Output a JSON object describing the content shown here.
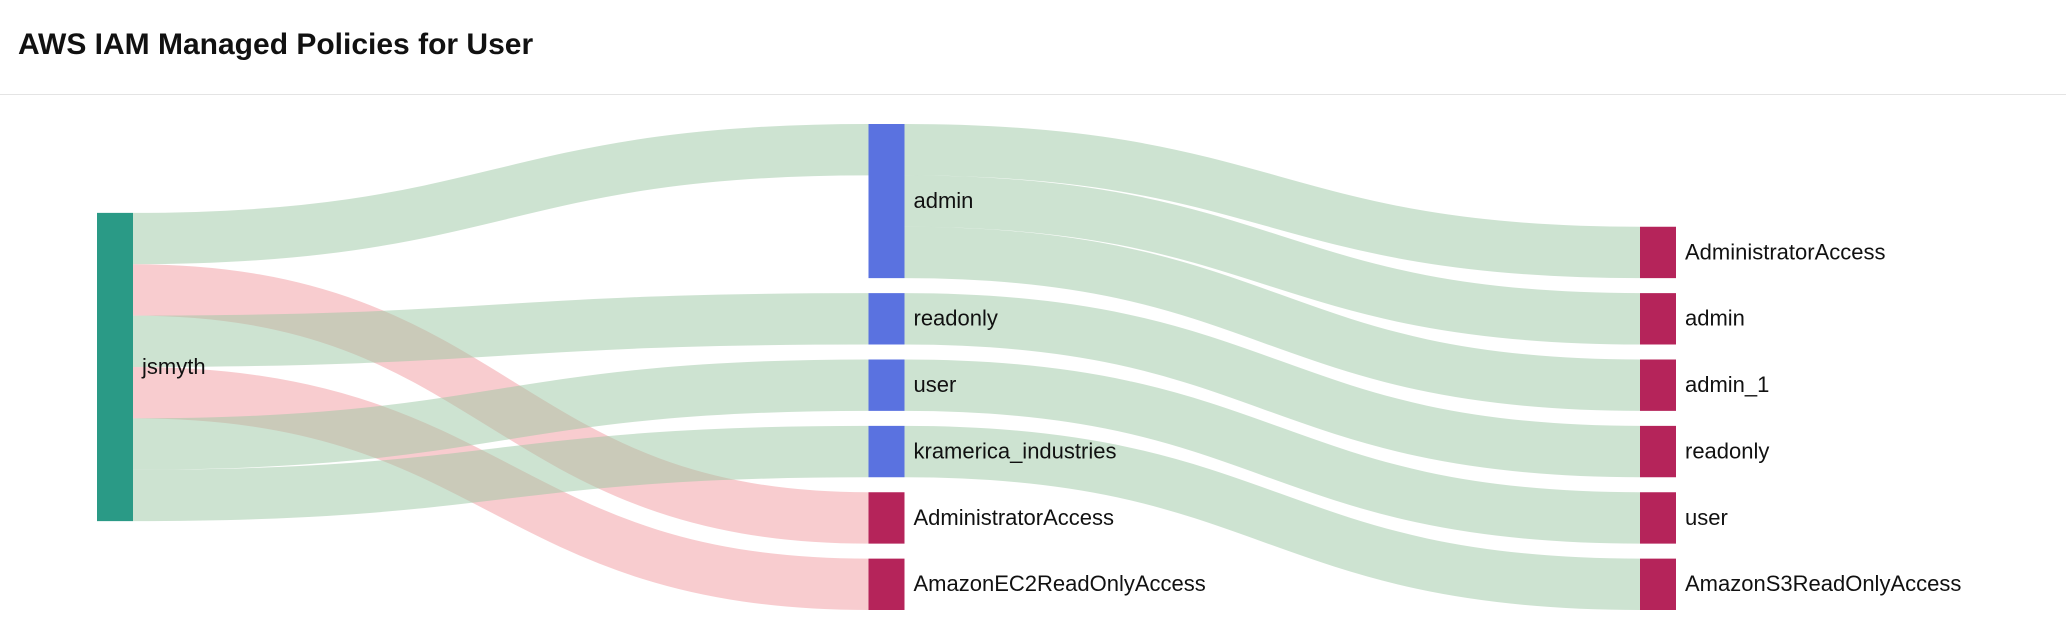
{
  "header": {
    "title": "AWS IAM Managed Policies for User"
  },
  "chart_data": {
    "type": "sankey",
    "nodes": [
      {
        "label": "jsmyth",
        "color": "#2a9a86"
      },
      {
        "label": "admin",
        "color": "#5a72e0"
      },
      {
        "label": "readonly",
        "color": "#5a72e0"
      },
      {
        "label": "user",
        "color": "#5a72e0"
      },
      {
        "label": "kramerica_industries",
        "color": "#5a72e0"
      },
      {
        "label": "AdministratorAccess",
        "color": "#b5245a"
      },
      {
        "label": "admin",
        "color": "#b5245a"
      },
      {
        "label": "admin_1",
        "color": "#b5245a"
      },
      {
        "label": "readonly",
        "color": "#b5245a"
      },
      {
        "label": "user",
        "color": "#b5245a"
      },
      {
        "label": "AdministratorAccess",
        "color": "#b5245a"
      },
      {
        "label": "AmazonEC2ReadOnlyAccess",
        "color": "#b5245a"
      },
      {
        "label": "AmazonS3ReadOnlyAccess",
        "color": "#b5245a"
      }
    ],
    "links": [
      {
        "source": 0,
        "target": 1,
        "value": 1,
        "color": "#9cc8a3"
      },
      {
        "source": 0,
        "target": 10,
        "value": 1,
        "color": "#f29a9f"
      },
      {
        "source": 0,
        "target": 2,
        "value": 1,
        "color": "#9cc8a3"
      },
      {
        "source": 0,
        "target": 11,
        "value": 1,
        "color": "#f29a9f"
      },
      {
        "source": 0,
        "target": 3,
        "value": 1,
        "color": "#9cc8a3"
      },
      {
        "source": 0,
        "target": 4,
        "value": 1,
        "color": "#9cc8a3"
      },
      {
        "source": 1,
        "target": 5,
        "value": 1,
        "color": "#9cc8a3"
      },
      {
        "source": 1,
        "target": 6,
        "value": 1,
        "color": "#9cc8a3"
      },
      {
        "source": 1,
        "target": 7,
        "value": 1,
        "color": "#9cc8a3"
      },
      {
        "source": 2,
        "target": 8,
        "value": 1,
        "color": "#9cc8a3"
      },
      {
        "source": 3,
        "target": 9,
        "value": 1,
        "color": "#9cc8a3"
      },
      {
        "source": 4,
        "target": 12,
        "value": 1,
        "color": "#9cc8a3"
      }
    ]
  }
}
